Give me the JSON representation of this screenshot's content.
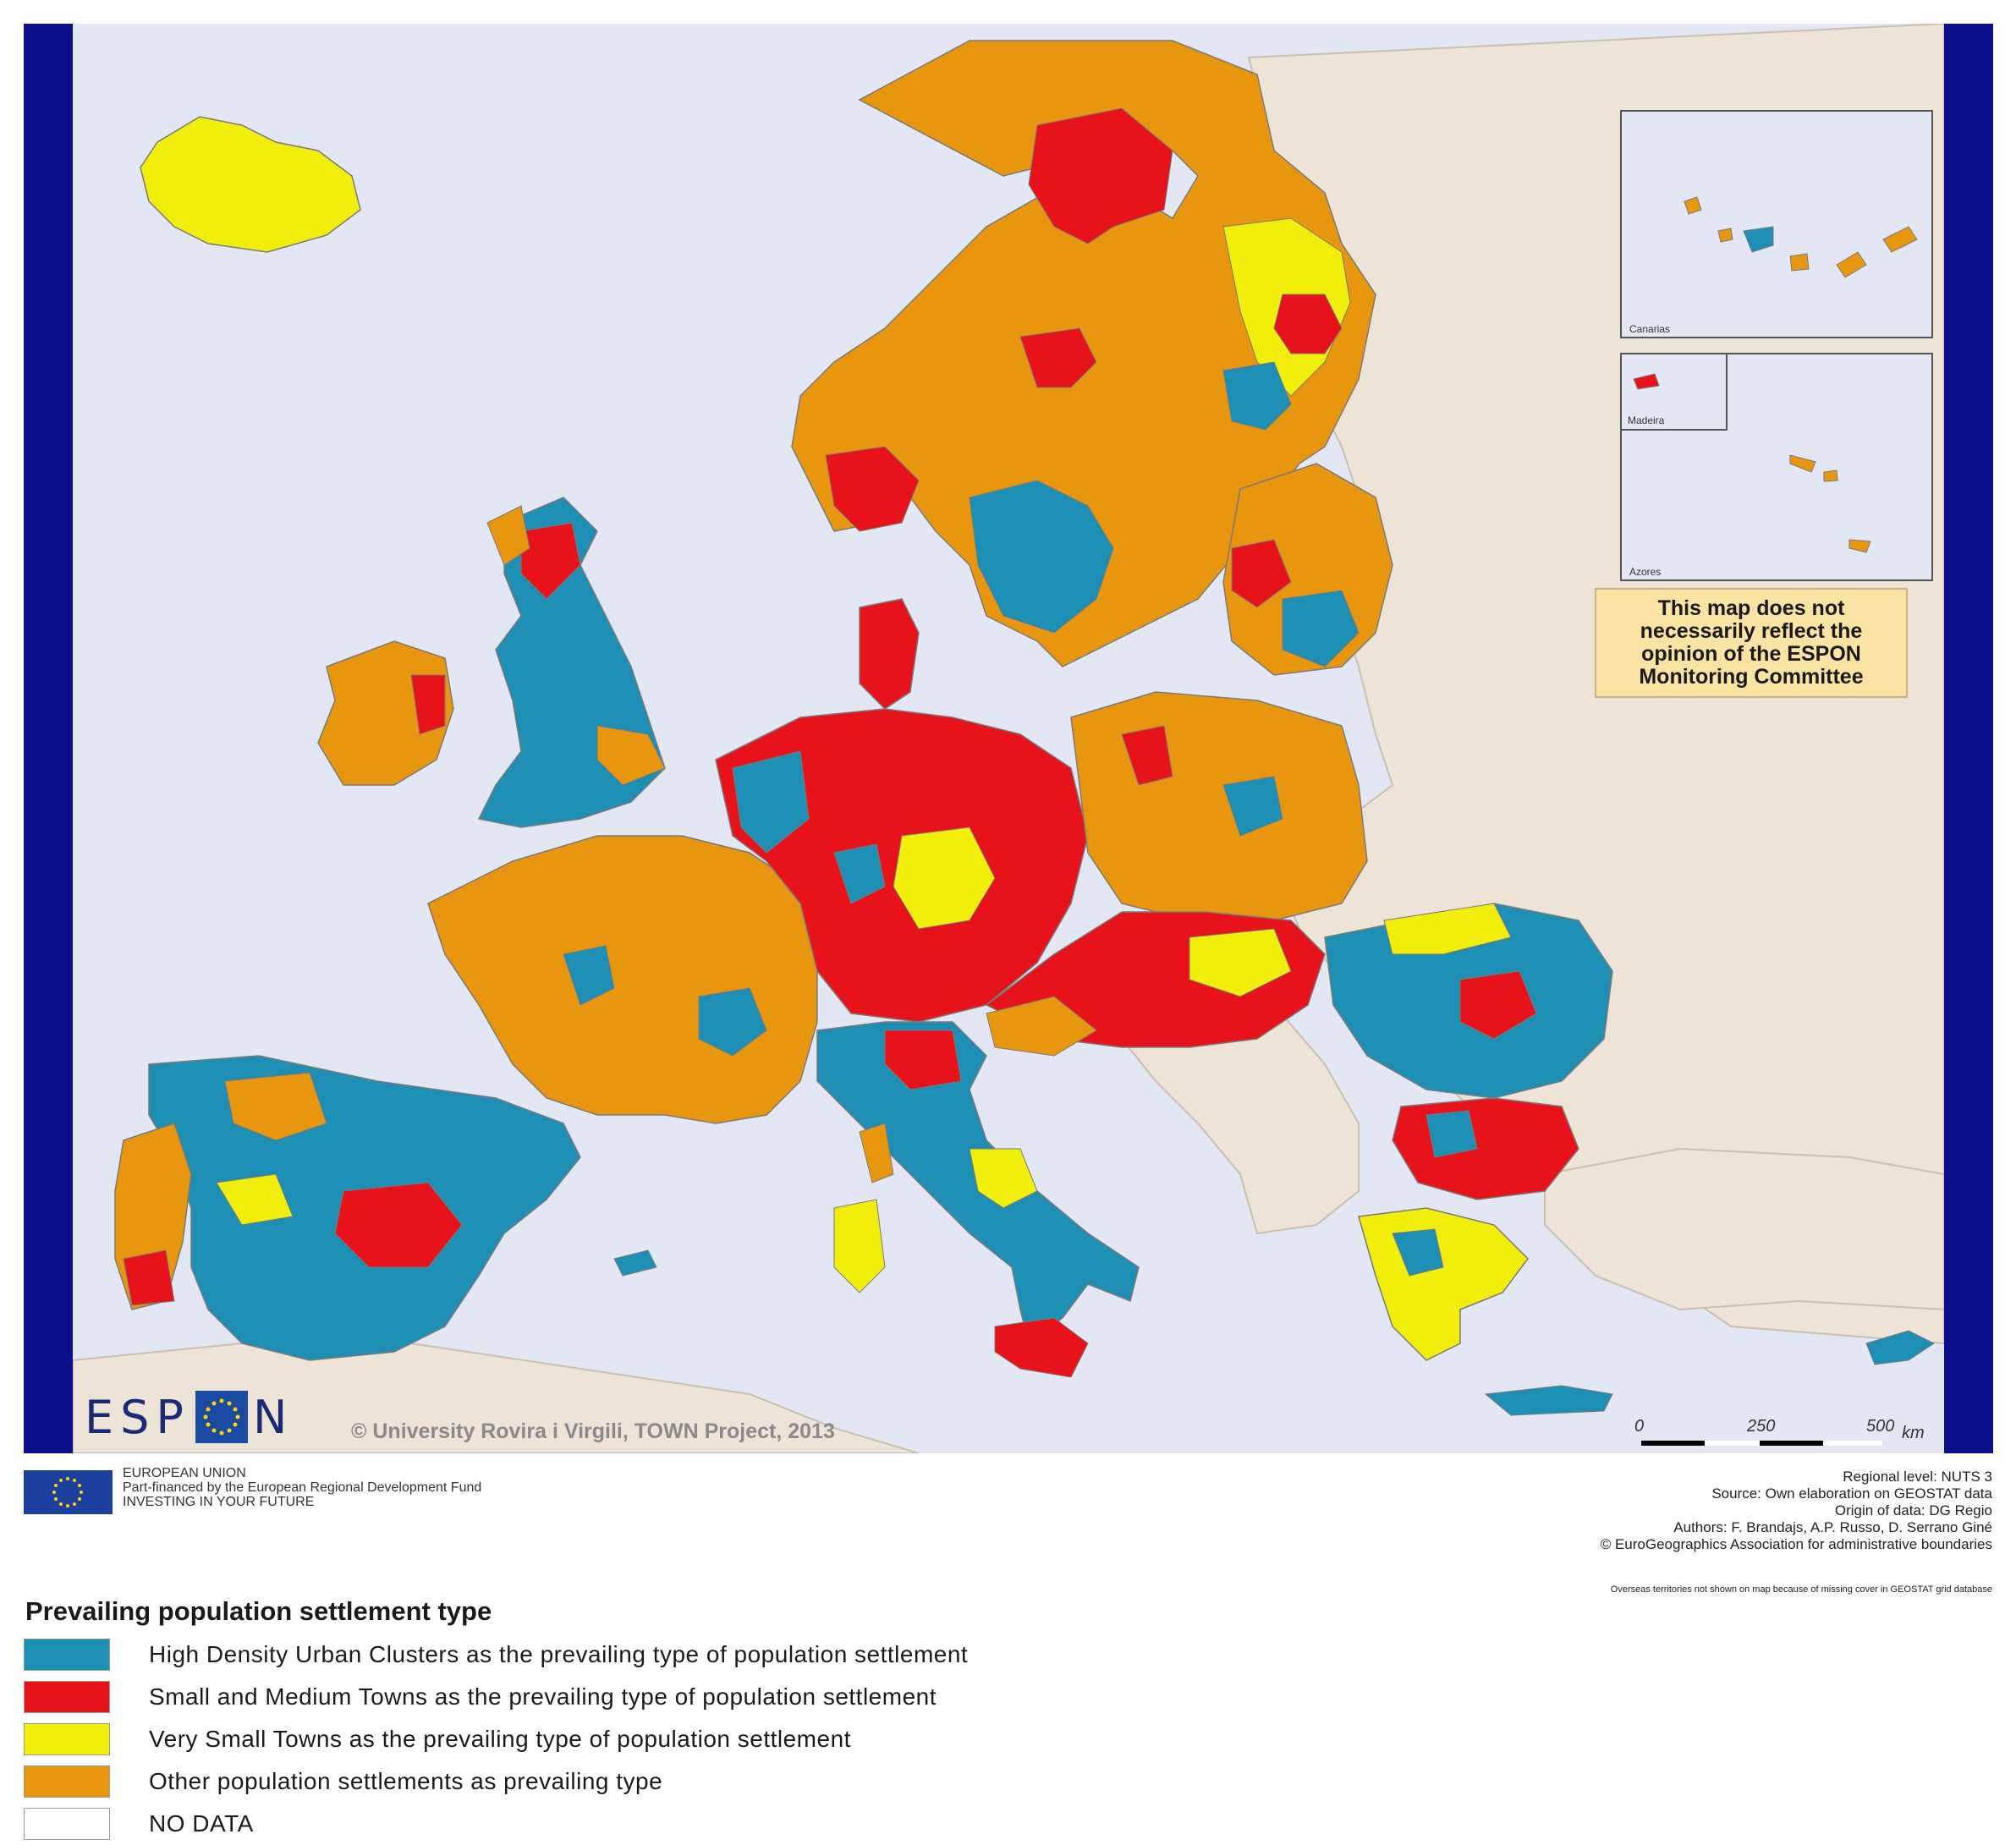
{
  "legend": {
    "title": "Prevailing population settlement type",
    "items": [
      {
        "label": "High Density Urban Clusters as the prevailing type of population settlement",
        "color": "#1e8fb4"
      },
      {
        "label": "Small and Medium Towns as the prevailing type of population settlement",
        "color": "#e8121a"
      },
      {
        "label": "Very Small Towns as the prevailing type of population settlement",
        "color": "#f2ee0c"
      },
      {
        "label": "Other population settlements as prevailing type",
        "color": "#e8960e"
      },
      {
        "label": "NO DATA",
        "color": "#ffffff"
      }
    ]
  },
  "colors": {
    "sea": "#e3e7f4",
    "non_espon_land": "#ede3d6",
    "frame": "#0b0f8a",
    "disclaimer_bg": "#fbe3a3"
  },
  "insets": {
    "canarias": "Canarias",
    "madeira": "Madeira",
    "azores": "Azores"
  },
  "disclaimer": "This map does not\nnecessarily reflect the\nopinion of the ESPON\nMonitoring Committee",
  "logo": {
    "left": "ESP",
    "right": "N"
  },
  "copyright": "© University Rovira i Virgili, TOWN Project, 2013",
  "scale": {
    "zero": "0",
    "mid": "250",
    "max": "500",
    "unit": "km"
  },
  "eu": {
    "line1": "EUROPEAN UNION",
    "line2": "Part-financed by the European Regional Development Fund",
    "line3": "INVESTING IN YOUR FUTURE"
  },
  "credits": {
    "line1": "Regional level: NUTS 3",
    "line2": "Source: Own elaboration on GEOSTAT data",
    "line3": "Origin of data: DG Regio",
    "line4": "Authors: F. Brandajs, A.P. Russo, D. Serrano Giné",
    "line5": "© EuroGeographics Association for administrative boundaries"
  },
  "overseas_note": "Overseas territories not shown on map because of missing cover in GEOSTAT grid database"
}
